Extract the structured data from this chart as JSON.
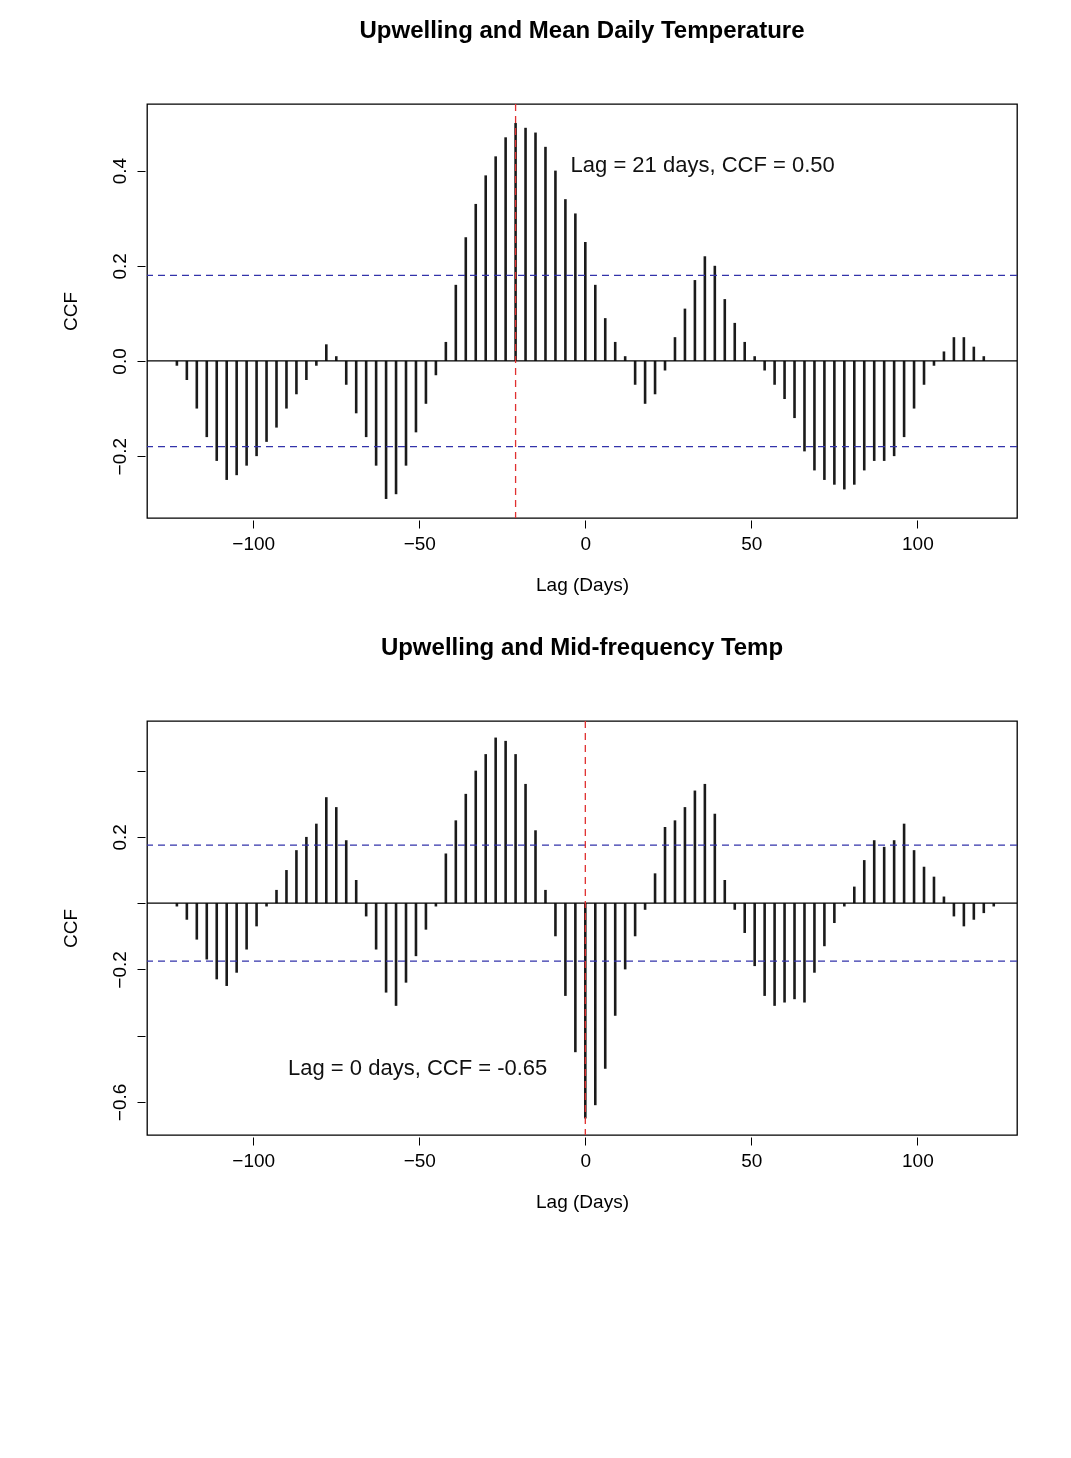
{
  "chart_data": [
    {
      "type": "bar",
      "title": "Upwelling and Mean Daily Temperature",
      "xlabel": "Lag (Days)",
      "ylabel": "CCF",
      "grid": false,
      "x": [
        -123,
        -120,
        -117,
        -114,
        -111,
        -108,
        -105,
        -102,
        -99,
        -96,
        -93,
        -90,
        -87,
        -84,
        -81,
        -78,
        -75,
        -72,
        -69,
        -66,
        -63,
        -60,
        -57,
        -54,
        -51,
        -48,
        -45,
        -42,
        -39,
        -36,
        -33,
        -30,
        -27,
        -24,
        -21,
        -18,
        -15,
        -12,
        -9,
        -6,
        -3,
        0,
        3,
        6,
        9,
        12,
        15,
        18,
        21,
        24,
        27,
        30,
        33,
        36,
        39,
        42,
        45,
        48,
        51,
        54,
        57,
        60,
        63,
        66,
        69,
        72,
        75,
        78,
        81,
        84,
        87,
        90,
        93,
        96,
        99,
        102,
        105,
        108,
        111,
        114,
        117,
        120,
        123
      ],
      "series": [
        {
          "color": "#1a1a1a",
          "values": [
            -0.01,
            -0.04,
            -0.1,
            -0.16,
            -0.21,
            -0.25,
            -0.24,
            -0.22,
            -0.2,
            -0.17,
            -0.14,
            -0.1,
            -0.07,
            -0.04,
            -0.01,
            0.035,
            0.01,
            -0.05,
            -0.11,
            -0.16,
            -0.22,
            -0.29,
            -0.28,
            -0.22,
            -0.15,
            -0.09,
            -0.03,
            0.04,
            0.16,
            0.26,
            0.33,
            0.39,
            0.43,
            0.47,
            0.5,
            0.49,
            0.48,
            0.45,
            0.4,
            0.34,
            0.31,
            0.25,
            0.16,
            0.09,
            0.04,
            0.01,
            -0.05,
            -0.09,
            -0.07,
            -0.02,
            0.05,
            0.11,
            0.17,
            0.22,
            0.2,
            0.13,
            0.08,
            0.04,
            0.01,
            -0.02,
            -0.05,
            -0.08,
            -0.12,
            -0.19,
            -0.23,
            -0.25,
            -0.26,
            -0.27,
            -0.26,
            -0.23,
            -0.21,
            -0.21,
            -0.2,
            -0.16,
            -0.1,
            -0.05,
            -0.01,
            0.02,
            0.05,
            0.05,
            0.03,
            0.01,
            0.0
          ]
        }
      ],
      "xlim": [
        -132,
        130
      ],
      "xticks": [
        -100,
        -50,
        0,
        50,
        100
      ],
      "ylim": [
        -0.33,
        0.54
      ],
      "yticks": [
        -0.2,
        {
          "value": 0,
          "label": "0.0"
        },
        0.2,
        0.4
      ],
      "ref_lines": [
        {
          "axis": "y",
          "value": 0,
          "color": "#000000",
          "line_style": "solid"
        },
        {
          "axis": "y",
          "value": 0.18,
          "color": "#3333aa",
          "line_style": "dashed"
        },
        {
          "axis": "y",
          "value": -0.18,
          "color": "#3333aa",
          "line_style": "dashed"
        },
        {
          "axis": "x",
          "value": -21,
          "color": "#e03030",
          "line_style": "dashed"
        }
      ],
      "annotations": [
        {
          "text": "Lag = 21 days, CCF = 0.50",
          "x": -21,
          "y": 0.5
        }
      ]
    },
    {
      "type": "bar",
      "title": "Upwelling and Mid-frequency Temp",
      "xlabel": "Lag (Days)",
      "ylabel": "CCF",
      "grid": false,
      "x": [
        -123,
        -120,
        -117,
        -114,
        -111,
        -108,
        -105,
        -102,
        -99,
        -96,
        -93,
        -90,
        -87,
        -84,
        -81,
        -78,
        -75,
        -72,
        -69,
        -66,
        -63,
        -60,
        -57,
        -54,
        -51,
        -48,
        -45,
        -42,
        -39,
        -36,
        -33,
        -30,
        -27,
        -24,
        -21,
        -18,
        -15,
        -12,
        -9,
        -6,
        -3,
        0,
        3,
        6,
        9,
        12,
        15,
        18,
        21,
        24,
        27,
        30,
        33,
        36,
        39,
        42,
        45,
        48,
        51,
        54,
        57,
        60,
        63,
        66,
        69,
        72,
        75,
        78,
        81,
        84,
        87,
        90,
        93,
        96,
        99,
        102,
        105,
        108,
        111,
        114,
        117,
        120,
        123
      ],
      "series": [
        {
          "color": "#1a1a1a",
          "values": [
            -0.01,
            -0.05,
            -0.11,
            -0.17,
            -0.23,
            -0.25,
            -0.21,
            -0.14,
            -0.07,
            -0.01,
            0.04,
            0.1,
            0.16,
            0.2,
            0.24,
            0.32,
            0.29,
            0.19,
            0.07,
            -0.04,
            -0.14,
            -0.27,
            -0.31,
            -0.24,
            -0.16,
            -0.08,
            -0.01,
            0.15,
            0.25,
            0.33,
            0.4,
            0.45,
            0.5,
            0.49,
            0.45,
            0.36,
            0.22,
            0.04,
            -0.1,
            -0.28,
            -0.45,
            -0.65,
            -0.61,
            -0.5,
            -0.34,
            -0.2,
            -0.1,
            -0.02,
            0.09,
            0.23,
            0.25,
            0.29,
            0.34,
            0.36,
            0.27,
            0.07,
            -0.02,
            -0.09,
            -0.19,
            -0.28,
            -0.31,
            -0.3,
            -0.29,
            -0.3,
            -0.21,
            -0.13,
            -0.06,
            -0.01,
            0.05,
            0.13,
            0.19,
            0.17,
            0.19,
            0.24,
            0.16,
            0.11,
            0.08,
            0.02,
            -0.04,
            -0.07,
            -0.05,
            -0.03,
            -0.01
          ]
        }
      ],
      "xlim": [
        -132,
        130
      ],
      "xticks": [
        -100,
        -50,
        0,
        50,
        100
      ],
      "ylim": [
        -0.7,
        0.55
      ],
      "yticks": [
        -0.6,
        {
          "value": -0.4,
          "label": null
        },
        -0.2,
        {
          "value": 0,
          "label": null
        },
        0.2,
        {
          "value": 0.4,
          "label": null
        }
      ],
      "ref_lines": [
        {
          "axis": "y",
          "value": 0,
          "color": "#000000",
          "line_style": "solid"
        },
        {
          "axis": "y",
          "value": 0.175,
          "color": "#3333aa",
          "line_style": "dashed"
        },
        {
          "axis": "y",
          "value": -0.175,
          "color": "#3333aa",
          "line_style": "dashed"
        },
        {
          "axis": "x",
          "value": 0,
          "color": "#e03030",
          "line_style": "dashed"
        }
      ],
      "annotations": [
        {
          "text": "Lag = 0 days, CCF = -0.65",
          "x": 0,
          "y": -0.65
        }
      ]
    }
  ]
}
